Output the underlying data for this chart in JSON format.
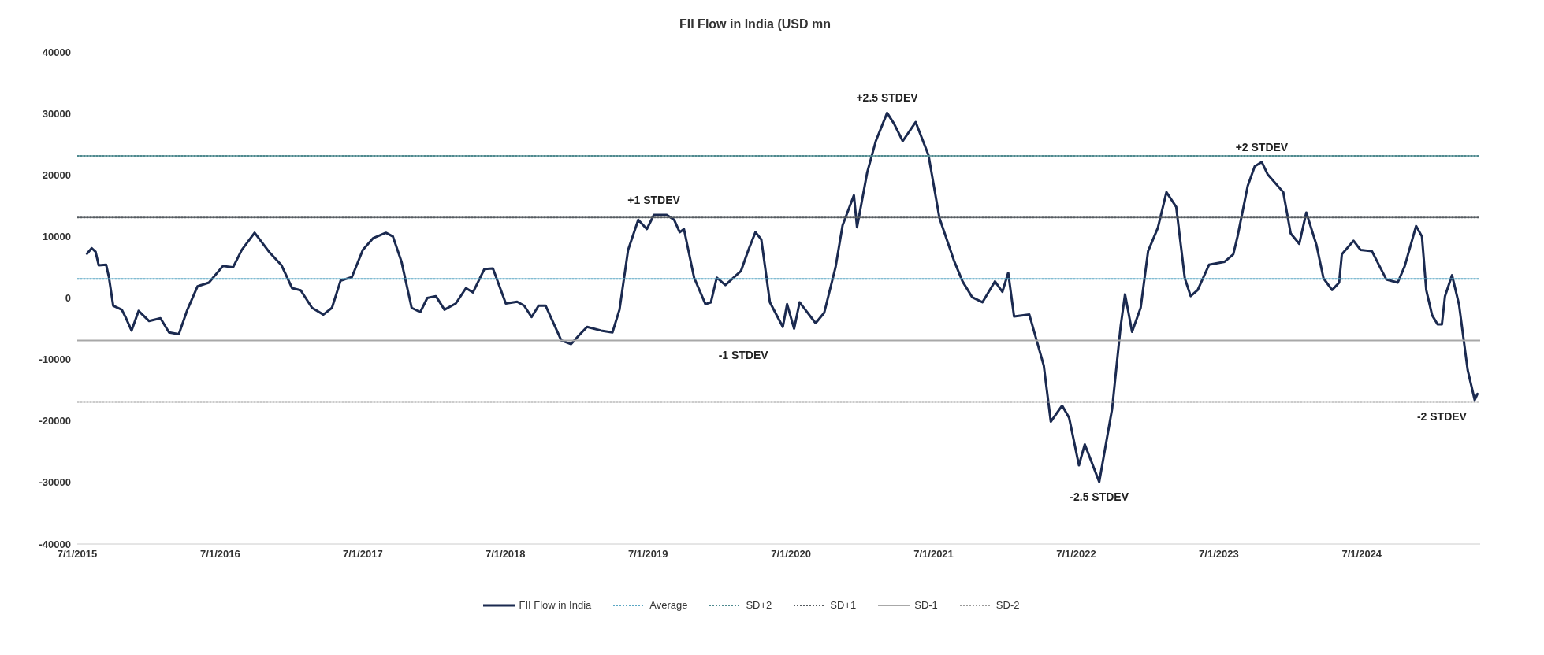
{
  "chart_data": {
    "type": "line",
    "title": "FII Flow in India (USD mn",
    "xlim": [
      "2015-07-01",
      "2025-04-30"
    ],
    "xticks": [
      {
        "value": "2015-07-01",
        "label": "7/1/2015"
      },
      {
        "value": "2016-07-01",
        "label": "7/1/2016"
      },
      {
        "value": "2017-07-01",
        "label": "7/1/2017"
      },
      {
        "value": "2018-07-01",
        "label": "7/1/2018"
      },
      {
        "value": "2019-07-01",
        "label": "7/1/2019"
      },
      {
        "value": "2020-07-01",
        "label": "7/1/2020"
      },
      {
        "value": "2021-07-01",
        "label": "7/1/2021"
      },
      {
        "value": "2022-07-01",
        "label": "7/1/2022"
      },
      {
        "value": "2023-07-01",
        "label": "7/1/2023"
      },
      {
        "value": "2024-07-01",
        "label": "7/1/2024"
      }
    ],
    "ylim": [
      -40000,
      40000
    ],
    "yticks": [
      -40000,
      -30000,
      -20000,
      -10000,
      0,
      10000,
      20000,
      30000,
      40000
    ],
    "legend": "bottom",
    "marker": "none",
    "series": [
      {
        "name": "FII Flow in India",
        "color": "#1b2a50",
        "line_style": "solid",
        "x": [
          "2015-07-26",
          "2015-08-07",
          "2015-08-17",
          "2015-08-25",
          "2015-09-13",
          "2015-09-20",
          "2015-10-01",
          "2015-10-23",
          "2015-11-03",
          "2015-11-17",
          "2015-12-05",
          "2016-01-01",
          "2016-01-30",
          "2016-02-21",
          "2016-03-17",
          "2016-04-08",
          "2016-05-04",
          "2016-06-02",
          "2016-07-08",
          "2016-08-03",
          "2016-08-25",
          "2016-09-27",
          "2016-11-03",
          "2016-12-05",
          "2017-01-01",
          "2017-01-23",
          "2017-02-21",
          "2017-03-22",
          "2017-04-13",
          "2017-05-05",
          "2017-06-03",
          "2017-07-01",
          "2017-07-27",
          "2017-08-29",
          "2017-09-16",
          "2017-10-08",
          "2017-11-03",
          "2017-11-25",
          "2017-12-13",
          "2018-01-04",
          "2018-01-26",
          "2018-02-24",
          "2018-03-22",
          "2018-04-09",
          "2018-05-08",
          "2018-05-30",
          "2018-07-02",
          "2018-07-31",
          "2018-08-18",
          "2018-09-06",
          "2018-09-24",
          "2018-10-12",
          "2018-11-21",
          "2018-12-16",
          "2019-01-08",
          "2019-01-26",
          "2019-03-03",
          "2019-04-01",
          "2019-04-19",
          "2019-05-11",
          "2019-06-06",
          "2019-06-28",
          "2019-07-16",
          "2019-08-18",
          "2019-09-06",
          "2019-09-20",
          "2019-10-01",
          "2019-10-27",
          "2019-11-25",
          "2019-12-09",
          "2019-12-24",
          "2020-01-15",
          "2020-02-24",
          "2020-03-14",
          "2020-04-01",
          "2020-04-16",
          "2020-05-08",
          "2020-06-10",
          "2020-06-21",
          "2020-07-09",
          "2020-07-23",
          "2020-09-02",
          "2020-09-24",
          "2020-10-23",
          "2020-11-10",
          "2020-12-09",
          "2020-12-17",
          "2021-01-12",
          "2021-02-03",
          "2021-03-04",
          "2021-03-22",
          "2021-04-13",
          "2021-05-16",
          "2021-06-18",
          "2021-07-16",
          "2021-08-22",
          "2021-09-13",
          "2021-10-08",
          "2021-11-03",
          "2021-12-05",
          "2021-12-24",
          "2022-01-08",
          "2022-01-23",
          "2022-03-03",
          "2022-04-09",
          "2022-04-27",
          "2022-05-26",
          "2022-06-13",
          "2022-07-08",
          "2022-07-23",
          "2022-08-29",
          "2022-10-01",
          "2022-10-23",
          "2022-11-03",
          "2022-11-21",
          "2022-12-13",
          "2023-01-01",
          "2023-01-26",
          "2023-02-17",
          "2023-03-14",
          "2023-04-05",
          "2023-04-20",
          "2023-05-08",
          "2023-06-06",
          "2023-07-16",
          "2023-08-07",
          "2023-08-18",
          "2023-09-13",
          "2023-10-01",
          "2023-10-19",
          "2023-11-03",
          "2023-12-13",
          "2024-01-01",
          "2024-01-23",
          "2024-02-10",
          "2024-03-07",
          "2024-03-25",
          "2024-04-16",
          "2024-05-04",
          "2024-05-11",
          "2024-06-10",
          "2024-06-28",
          "2024-07-27",
          "2024-09-02",
          "2024-10-01",
          "2024-10-19",
          "2024-11-17",
          "2024-12-02",
          "2024-12-13",
          "2024-12-28",
          "2025-01-11",
          "2025-01-22",
          "2025-01-30",
          "2025-02-17",
          "2025-03-07",
          "2025-03-29",
          "2025-04-16",
          "2025-04-23"
        ],
        "values": [
          7200,
          8100,
          7500,
          5300,
          5400,
          3400,
          -1250,
          -1900,
          -3300,
          -5300,
          -2100,
          -3750,
          -3300,
          -5600,
          -5900,
          -1900,
          1900,
          2500,
          5200,
          5000,
          7800,
          10600,
          7500,
          5300,
          1600,
          1250,
          -1600,
          -2700,
          -1600,
          2800,
          3400,
          7800,
          9700,
          10600,
          10000,
          5900,
          -1600,
          -2300,
          0,
          300,
          -1900,
          -900,
          1600,
          900,
          4700,
          4800,
          -900,
          -600,
          -1250,
          -3100,
          -1250,
          -1250,
          -6900,
          -7500,
          -5900,
          -4700,
          -5300,
          -5600,
          -1900,
          7800,
          12700,
          11200,
          13500,
          13500,
          12700,
          10700,
          11200,
          3300,
          -1000,
          -700,
          3300,
          2100,
          4400,
          7800,
          10700,
          9500,
          -700,
          -4700,
          -1000,
          -5000,
          -700,
          -4100,
          -2400,
          5000,
          11800,
          16700,
          11500,
          20400,
          25500,
          30100,
          28300,
          25500,
          28600,
          23200,
          13000,
          6100,
          2700,
          100,
          -700,
          2700,
          1000,
          4100,
          -3000,
          -2700,
          -11000,
          -20100,
          -17500,
          -19500,
          -27200,
          -23800,
          -29900,
          -18000,
          -4500,
          600,
          -5500,
          -1600,
          7600,
          11400,
          17200,
          14800,
          3200,
          300,
          1300,
          5400,
          5900,
          7100,
          10000,
          18200,
          21400,
          22100,
          20100,
          17200,
          10500,
          8800,
          13900,
          8600,
          3200,
          1300,
          2500,
          7100,
          9300,
          7800,
          7600,
          3000,
          2500,
          5200,
          11700,
          10000,
          1300,
          -2800,
          -4300,
          -4300,
          300,
          3700,
          -1100,
          -11700,
          -16600,
          -15600
        ]
      },
      {
        "name": "Average",
        "color": "#5ba7c4",
        "line_style": "dotted",
        "x": [
          "2015-07-01",
          "2025-04-30"
        ],
        "values": [
          3100,
          3100
        ]
      },
      {
        "name": "SD+2",
        "color": "#4f8a8f",
        "line_style": "dotted",
        "x": [
          "2015-07-01",
          "2025-04-30"
        ],
        "values": [
          23100,
          23100
        ]
      },
      {
        "name": "SD+1",
        "color": "#555b60",
        "line_style": "dotted",
        "x": [
          "2015-07-01",
          "2025-04-30"
        ],
        "values": [
          13100,
          13100
        ]
      },
      {
        "name": "SD-1",
        "color": "#a8a8a8",
        "line_style": "solid",
        "x": [
          "2015-07-01",
          "2025-04-30"
        ],
        "values": [
          -6900,
          -6900
        ]
      },
      {
        "name": "SD-2",
        "color": "#9a9a9a",
        "line_style": "dotted",
        "x": [
          "2015-07-01",
          "2025-04-30"
        ],
        "values": [
          -16900,
          -16900
        ]
      }
    ],
    "annotations": [
      {
        "text": "+1 STDEV",
        "x": "2019-07-16",
        "y": 13500
      },
      {
        "text": "-1 STDEV",
        "x": "2020-03-01",
        "y": -6900
      },
      {
        "text": "+2.5 STDEV",
        "x": "2021-03-04",
        "y": 30100
      },
      {
        "text": "-2.5 STDEV",
        "x": "2022-08-29",
        "y": -29900
      },
      {
        "text": "+2 STDEV",
        "x": "2023-10-19",
        "y": 22100
      },
      {
        "text": "-2 STDEV",
        "x": "2025-01-22",
        "y": -16900
      }
    ]
  }
}
